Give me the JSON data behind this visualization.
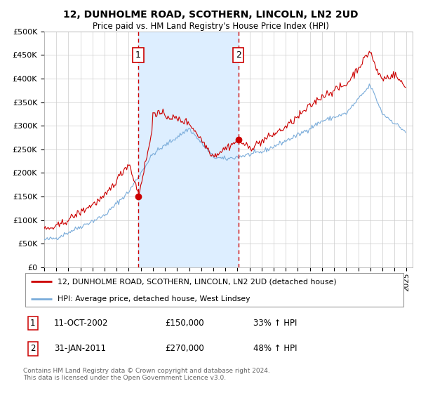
{
  "title": "12, DUNHOLME ROAD, SCOTHERN, LINCOLN, LN2 2UD",
  "subtitle": "Price paid vs. HM Land Registry's House Price Index (HPI)",
  "ylim": [
    0,
    500000
  ],
  "xlim_start": 1995.0,
  "xlim_end": 2025.5,
  "yticks": [
    0,
    50000,
    100000,
    150000,
    200000,
    250000,
    300000,
    350000,
    400000,
    450000,
    500000
  ],
  "ytick_labels": [
    "£0",
    "£50K",
    "£100K",
    "£150K",
    "£200K",
    "£250K",
    "£300K",
    "£350K",
    "£400K",
    "£450K",
    "£500K"
  ],
  "sale1_date": 2002.79,
  "sale1_price": 150000,
  "sale1_label": "1",
  "sale2_date": 2011.08,
  "sale2_price": 270000,
  "sale2_label": "2",
  "line_color_red": "#cc0000",
  "line_color_blue": "#7aacda",
  "shade_color": "#ddeeff",
  "vline_color": "#cc0000",
  "background_color": "#ffffff",
  "grid_color": "#cccccc",
  "legend_line1": "12, DUNHOLME ROAD, SCOTHERN, LINCOLN, LN2 2UD (detached house)",
  "legend_line2": "HPI: Average price, detached house, West Lindsey",
  "footnote": "Contains HM Land Registry data © Crown copyright and database right 2024.\nThis data is licensed under the Open Government Licence v3.0."
}
